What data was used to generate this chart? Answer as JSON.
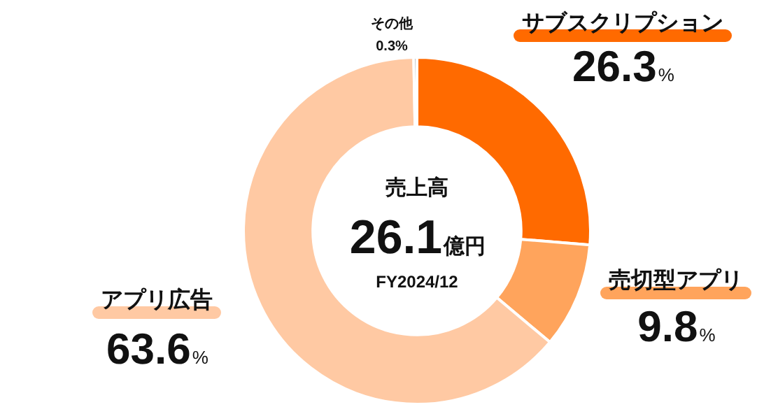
{
  "chart_data": {
    "type": "donut",
    "title": "売上高",
    "categories": [
      "サブスクリプション",
      "売切型アプリ",
      "アプリ広告",
      "その他"
    ],
    "values": [
      26.3,
      9.8,
      63.6,
      0.3
    ],
    "colors": [
      "#ff6a00",
      "#ffa45c",
      "#ffc9a3",
      "#a0a0a0"
    ],
    "value_labels": [
      "26.3%",
      "9.8%",
      "63.6%",
      "0.3%"
    ],
    "annotations": [
      "26.1億円",
      "FY2024/12"
    ],
    "legend": false
  }
}
